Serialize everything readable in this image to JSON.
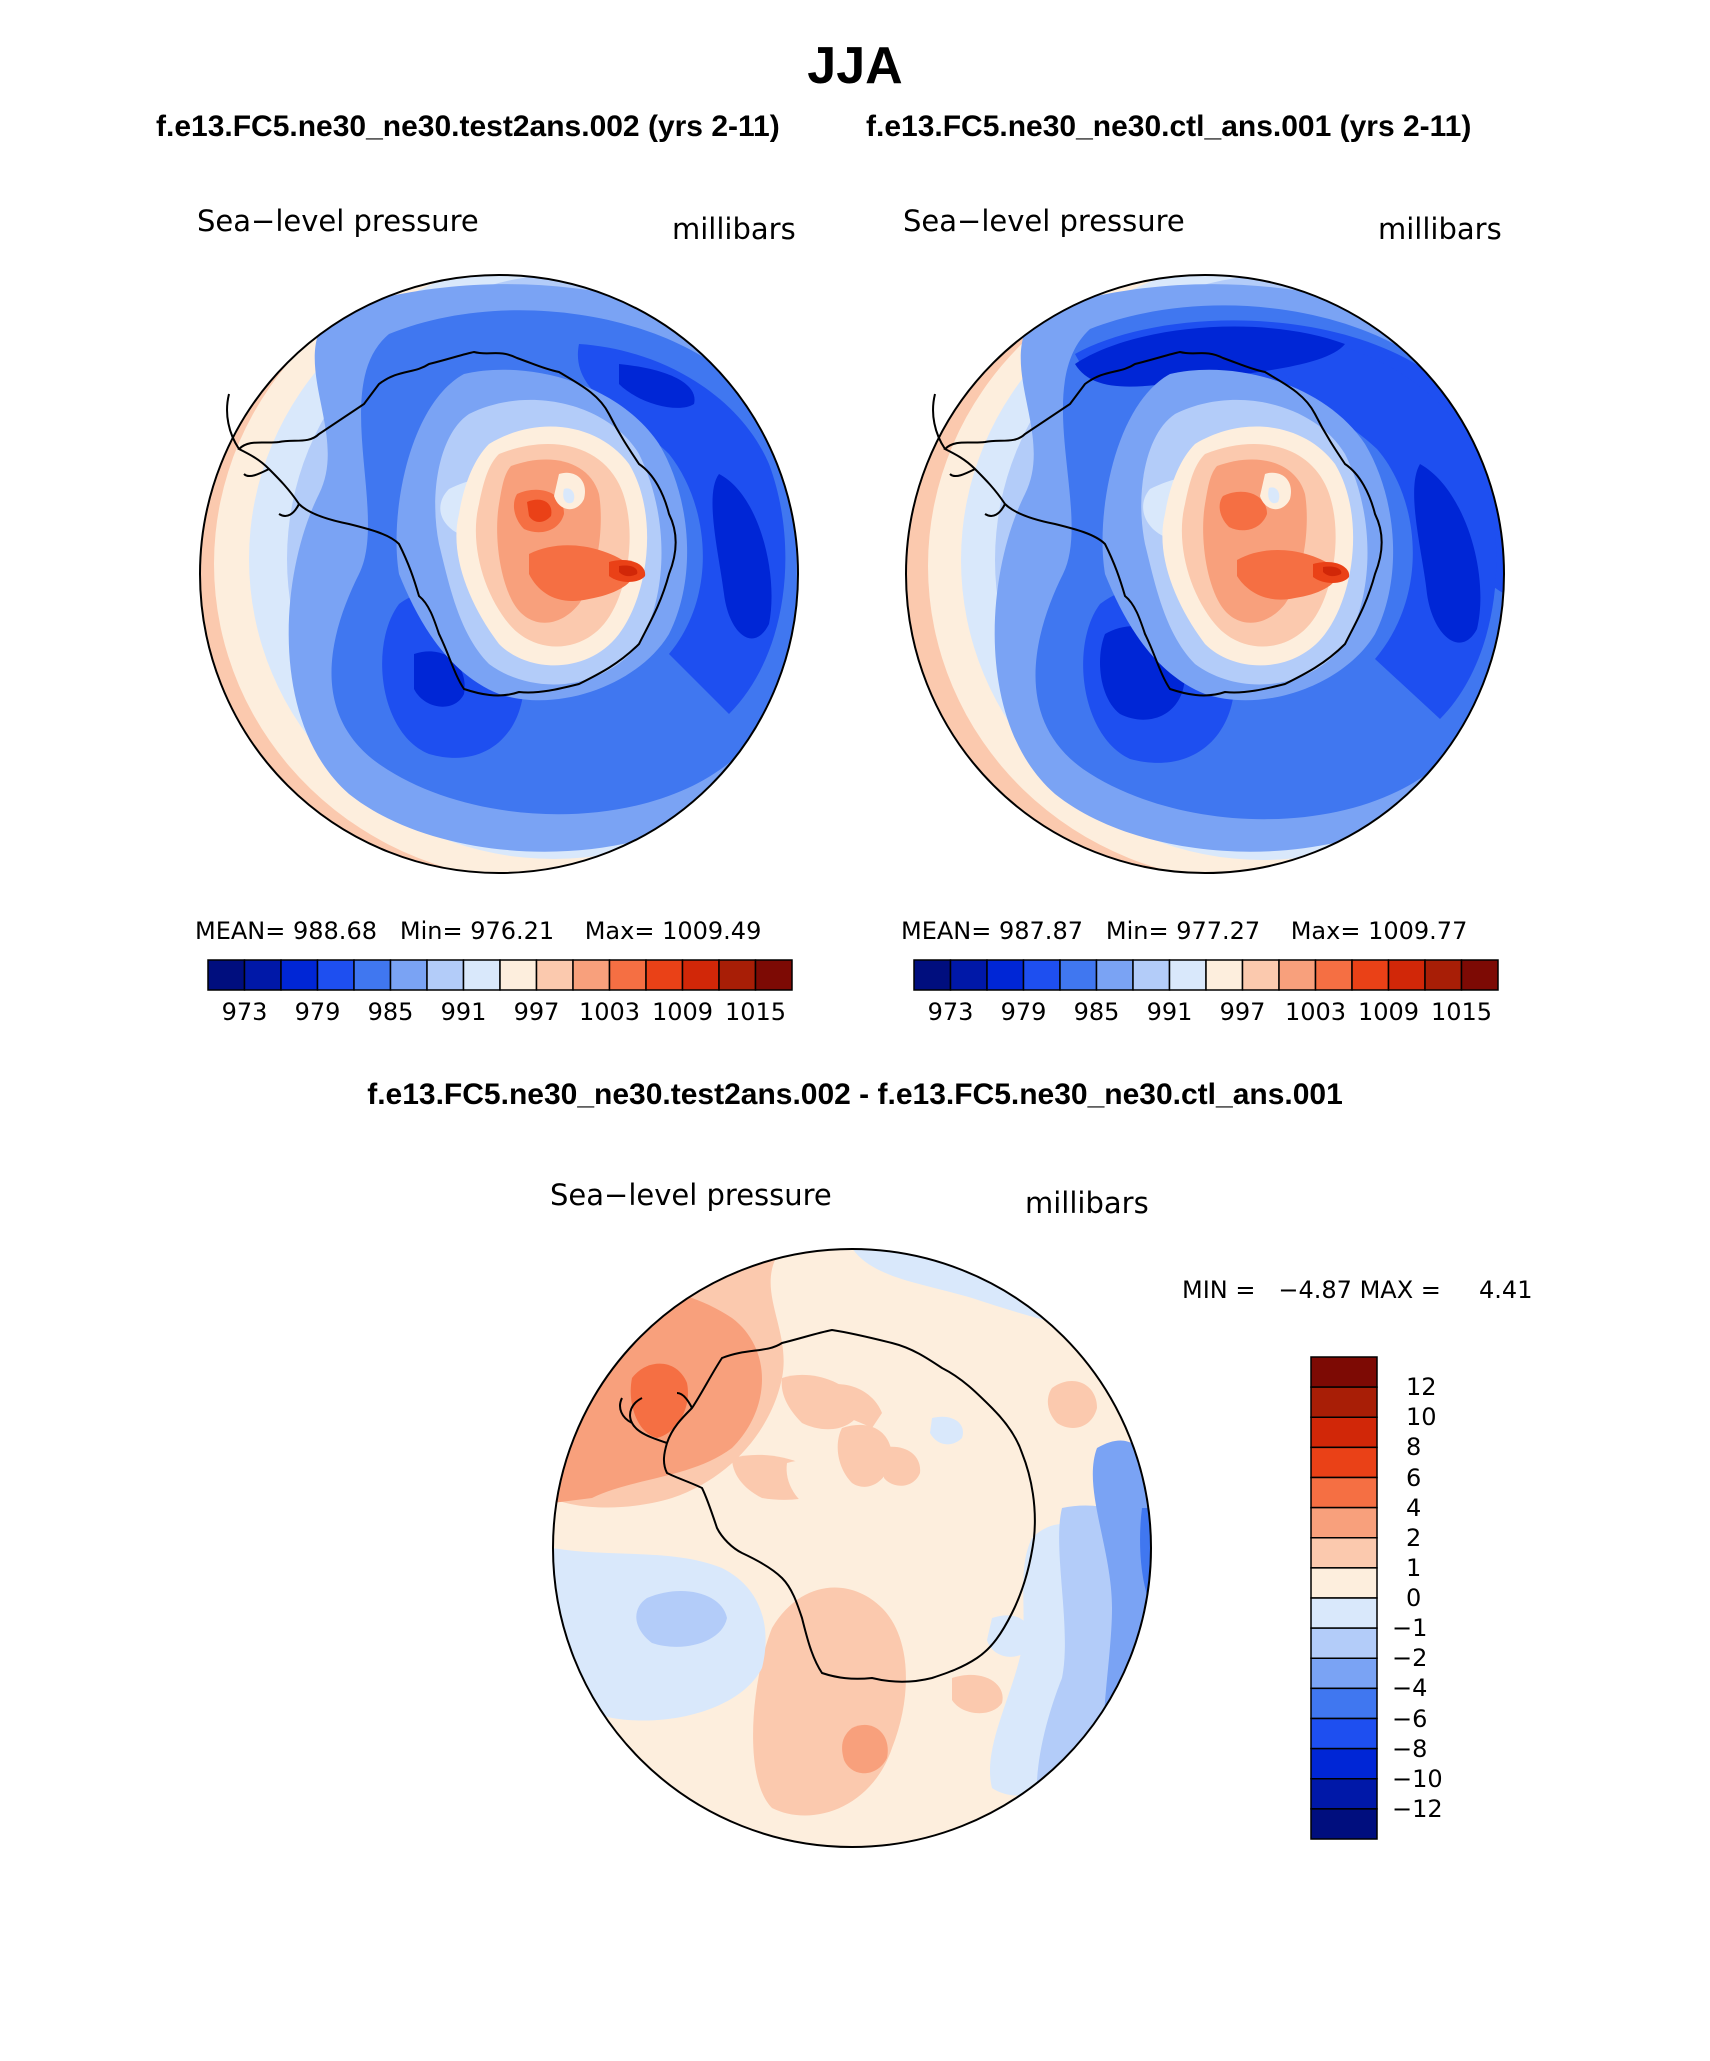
{
  "title": "JJA",
  "case_titles": {
    "test": "f.e13.FC5.ne30_ne30.test2ans.002 (yrs 2-11)",
    "control": "f.e13.FC5.ne30_ne30.ctl_ans.001 (yrs 2-11)",
    "difference": "f.e13.FC5.ne30_ne30.test2ans.002 - f.e13.FC5.ne30_ne30.ctl_ans.001"
  },
  "panels": [
    {
      "id": "test",
      "variable": "Sea−level pressure",
      "units": "millibars",
      "stats": {
        "mean_label": "MEAN=",
        "mean": "988.68",
        "min_label": "Min=",
        "min": "976.21",
        "max_label": "Max=",
        "max": "1009.49"
      },
      "colorbar_ticks": [
        "973",
        "979",
        "985",
        "991",
        "997",
        "1003",
        "1009",
        "1015"
      ]
    },
    {
      "id": "control",
      "variable": "Sea−level pressure",
      "units": "millibars",
      "stats": {
        "mean_label": "MEAN=",
        "mean": "987.87",
        "min_label": "Min=",
        "min": "977.27",
        "max_label": "Max=",
        "max": "1009.77"
      },
      "colorbar_ticks": [
        "973",
        "979",
        "985",
        "991",
        "997",
        "1003",
        "1009",
        "1015"
      ]
    },
    {
      "id": "difference",
      "variable": "Sea−level pressure",
      "units": "millibars",
      "stats": {
        "min_label": "MIN =",
        "min": "−4.87",
        "max_label": "MAX =",
        "max": "4.41"
      },
      "colorbar_ticks": [
        "12",
        "10",
        "8",
        "6",
        "4",
        "2",
        "1",
        "0",
        "−1",
        "−2",
        "−4",
        "−6",
        "−8",
        "−10",
        "−12"
      ]
    }
  ],
  "colors": {
    "abs_scale": [
      "#000e7e",
      "#0018a8",
      "#0026d6",
      "#1e4ff0",
      "#4077f0",
      "#7aa3f4",
      "#b3ccf9",
      "#d9e8fb",
      "#fdeedd",
      "#fbc9ae",
      "#f8a07c",
      "#f56f43",
      "#ea4117",
      "#d12708",
      "#a81e06",
      "#7d0a04"
    ],
    "diff_scale_top_to_bottom": [
      "#7d0a04",
      "#a81e06",
      "#d12708",
      "#ea4117",
      "#f56f43",
      "#f8a07c",
      "#fbc9ae",
      "#fdeedd",
      "#d9e8fb",
      "#b3ccf9",
      "#7aa3f4",
      "#4077f0",
      "#1e4ff0",
      "#0026d6",
      "#0018a8",
      "#000e7e"
    ],
    "outline": "#000000"
  }
}
